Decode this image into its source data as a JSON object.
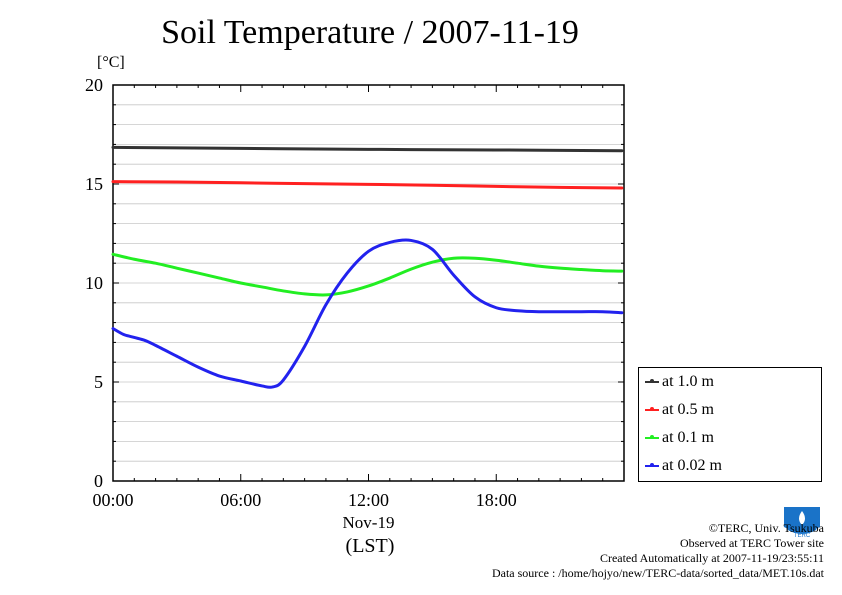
{
  "title": "Soil Temperature / 2007-11-19",
  "unit_label": "[°C]",
  "x_unit_label": "(LST)",
  "colors": {
    "at_1_0": "#333333",
    "at_0_5": "#ff2020",
    "at_0_1": "#22ee22",
    "at_0_02": "#2222ee"
  },
  "chart_data": {
    "type": "line",
    "ylim": [
      0,
      20
    ],
    "yticks": [
      0,
      5,
      10,
      15,
      20
    ],
    "xlim": [
      0,
      24
    ],
    "xticks": [
      {
        "value": 0,
        "label": "00:00"
      },
      {
        "value": 6,
        "label": "06:00"
      },
      {
        "value": 12,
        "label": "12:00"
      },
      {
        "value": 18,
        "label": "18:00"
      }
    ],
    "date_label": "Nov-19",
    "grid": "horizontal",
    "legend_position": "right",
    "series": [
      {
        "name": "at 1.0 m",
        "color": "#333333",
        "x": [
          0,
          6,
          12,
          18,
          23.9
        ],
        "y": [
          16.85,
          16.8,
          16.75,
          16.72,
          16.68
        ]
      },
      {
        "name": "at 0.5 m",
        "color": "#ff2020",
        "x": [
          0,
          3,
          6,
          9,
          12,
          15,
          18,
          21,
          23.9
        ],
        "y": [
          15.12,
          15.1,
          15.06,
          15.02,
          14.98,
          14.94,
          14.88,
          14.83,
          14.8
        ]
      },
      {
        "name": "at 0.1 m",
        "color": "#22ee22",
        "x": [
          0,
          1,
          2,
          3,
          4,
          5,
          6,
          7,
          8,
          9,
          10,
          11,
          12,
          13,
          14,
          15,
          16,
          17,
          18,
          19,
          20,
          21,
          22,
          23,
          23.9
        ],
        "y": [
          11.45,
          11.2,
          11.0,
          10.75,
          10.5,
          10.25,
          10.0,
          9.8,
          9.6,
          9.45,
          9.4,
          9.55,
          9.85,
          10.25,
          10.7,
          11.05,
          11.25,
          11.25,
          11.15,
          11.0,
          10.85,
          10.75,
          10.68,
          10.62,
          10.6
        ]
      },
      {
        "name": "at 0.02 m",
        "color": "#2222ee",
        "x": [
          0,
          0.5,
          1,
          1.5,
          2,
          3,
          4,
          5,
          6,
          7,
          7.5,
          8,
          9,
          10,
          11,
          12,
          13,
          14,
          15,
          16,
          17,
          18,
          19,
          20,
          21,
          22,
          23,
          23.9
        ],
        "y": [
          7.7,
          7.4,
          7.25,
          7.1,
          6.85,
          6.3,
          5.75,
          5.3,
          5.05,
          4.8,
          4.75,
          5.1,
          6.8,
          8.9,
          10.5,
          11.6,
          12.05,
          12.15,
          11.7,
          10.4,
          9.3,
          8.75,
          8.6,
          8.55,
          8.55,
          8.55,
          8.55,
          8.5
        ]
      }
    ]
  },
  "legend": {
    "items": [
      {
        "label": "at 1.0 m",
        "color": "#333333"
      },
      {
        "label": "at 0.5 m",
        "color": "#ff2020"
      },
      {
        "label": "at 0.1 m",
        "color": "#22ee22"
      },
      {
        "label": "at 0.02 m",
        "color": "#2222ee"
      }
    ]
  },
  "footer": {
    "copyright": "©TERC, Univ. Tsukuba",
    "observed": "Observed at TERC Tower site",
    "created": "Created Automatically at 2007-11-19/23:55:11",
    "source": "Data source : /home/hojyo/new/TERC-data/sorted_data/MET.10s.dat"
  },
  "logo_text": "TERC"
}
